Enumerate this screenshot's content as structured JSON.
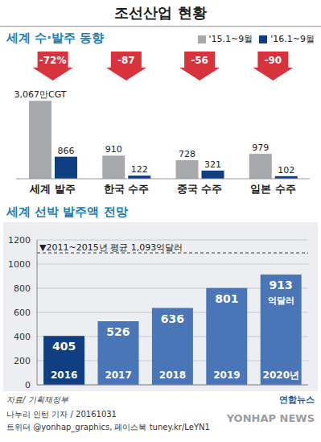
{
  "title": "조선산업 현황",
  "chart_data": [
    {
      "type": "bar",
      "title": "세계 수·발주 동향",
      "categories": [
        "세계 발주",
        "한국 수주",
        "중국 수주",
        "일본 수주"
      ],
      "series": [
        {
          "name": "'15.1~9월",
          "color": "#a6a8ab",
          "values": [
            3067,
            910,
            728,
            979
          ],
          "value_labels": [
            "3,067만CGT",
            "910",
            "728",
            "979"
          ]
        },
        {
          "name": "'16.1~9월",
          "color": "#0f3f82",
          "values": [
            866,
            122,
            321,
            102
          ]
        }
      ],
      "annotations": [
        "-72%",
        "-87",
        "-56",
        "-90"
      ],
      "ylim": [
        0,
        3800
      ],
      "tick_labels": "x",
      "data_labels": true,
      "legend": "top right"
    },
    {
      "type": "bar",
      "title": "세계 선박 발주액 전망",
      "categories": [
        "2016",
        "2017",
        "2018",
        "2019",
        "2020년"
      ],
      "values": [
        405,
        526,
        636,
        801,
        913
      ],
      "colors": [
        "#0f3f82",
        "#4a76b8",
        "#4a76b8",
        "#4a76b8",
        "#4a76b8"
      ],
      "ylim": [
        0,
        1200
      ],
      "yticks": [
        0,
        200,
        400,
        600,
        800,
        1000,
        1200
      ],
      "grid": true,
      "data_labels": true,
      "reference_line": {
        "value": 1093,
        "label": "▼2011~2015년 평균 1,093억달러"
      },
      "annotations": [
        {
          "category": "2020년",
          "text": "억달러"
        }
      ]
    }
  ],
  "source": "자료/ 기획재정부",
  "logo": "연합뉴스",
  "credits": [
    "나누리 인턴 기자 / 20161031",
    "트위터 @yonhap_graphics, 페이스북 tuney.kr/LeYN1"
  ],
  "watermark": "YONHAP NEWS"
}
